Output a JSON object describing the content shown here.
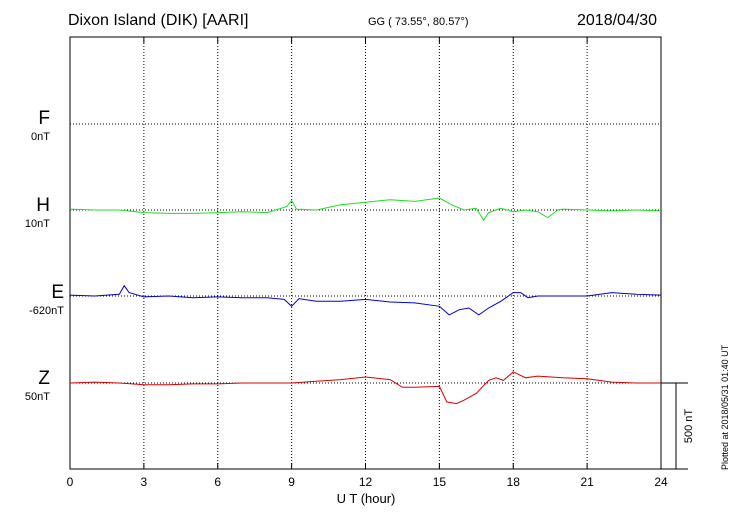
{
  "header": {
    "station": "Dixon Island (DIK)  [AARI]",
    "coords": "GG ( 73.55°,  80.57°)",
    "date": "2018/04/30"
  },
  "footer": {
    "plotted": "Plotted at 2018/05/31 01:40 UT"
  },
  "chart_data": {
    "type": "line",
    "xlabel": "U T (hour)",
    "xlim": [
      0,
      24
    ],
    "x_ticks": [
      0,
      3,
      6,
      9,
      12,
      15,
      18,
      21,
      24
    ],
    "grid": true,
    "scale_bar": {
      "label": "500 nT",
      "value": 500
    },
    "components": [
      {
        "letter": "F",
        "baseline": "0nT",
        "color": "#f5a800"
      },
      {
        "letter": "H",
        "baseline": "10nT",
        "color": "#22dd22"
      },
      {
        "letter": "E",
        "baseline": "-620nT",
        "color": "#0000cc"
      },
      {
        "letter": "Z",
        "baseline": "50nT",
        "color": "#dd0000"
      }
    ],
    "series": [
      {
        "component": "H",
        "x": [
          0,
          1,
          2,
          3,
          4,
          5,
          6,
          7,
          8,
          8.8,
          9.0,
          9.2,
          10,
          11,
          12,
          13,
          14,
          15,
          15.5,
          16,
          16.5,
          16.8,
          17,
          17.5,
          18,
          18.5,
          19,
          19.4,
          19.8,
          20,
          21,
          22,
          23,
          24
        ],
        "values": [
          5,
          0,
          0,
          -15,
          -20,
          -20,
          -15,
          -10,
          -15,
          20,
          55,
          5,
          0,
          30,
          45,
          60,
          50,
          70,
          30,
          0,
          10,
          -60,
          -15,
          10,
          -10,
          0,
          -10,
          -45,
          0,
          5,
          0,
          -5,
          0,
          -5
        ]
      },
      {
        "component": "E",
        "x": [
          0,
          1,
          2,
          2.2,
          2.4,
          3,
          4,
          5,
          6,
          7,
          8,
          8.7,
          9,
          9.3,
          10,
          11,
          12,
          13,
          14,
          15,
          15.4,
          15.8,
          16.2,
          16.6,
          17,
          17.5,
          18,
          18.3,
          18.6,
          19,
          20,
          21,
          22,
          23,
          24
        ],
        "values": [
          5,
          0,
          10,
          60,
          20,
          -5,
          0,
          -10,
          -5,
          -10,
          -10,
          -20,
          -60,
          -15,
          -30,
          -30,
          -20,
          -35,
          -40,
          -60,
          -110,
          -80,
          -70,
          -110,
          -70,
          -30,
          20,
          20,
          -10,
          0,
          0,
          0,
          20,
          10,
          5
        ]
      },
      {
        "component": "Z",
        "x": [
          0,
          1,
          2,
          3,
          4,
          5,
          6,
          7,
          8,
          9,
          10,
          11,
          12,
          13,
          13.5,
          14,
          15,
          15.3,
          15.7,
          16,
          16.5,
          17,
          17.3,
          17.6,
          18,
          18.5,
          19,
          20,
          21,
          22,
          23,
          24
        ],
        "values": [
          0,
          5,
          0,
          -10,
          -10,
          -5,
          -5,
          0,
          0,
          0,
          10,
          20,
          35,
          20,
          -25,
          -25,
          -20,
          -110,
          -120,
          -100,
          -60,
          15,
          30,
          15,
          65,
          30,
          40,
          30,
          25,
          5,
          0,
          0
        ]
      }
    ]
  }
}
